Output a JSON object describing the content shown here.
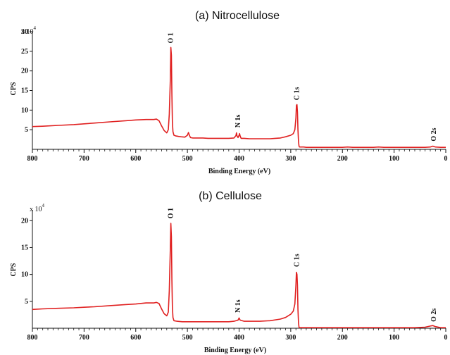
{
  "chart_data": [
    {
      "type": "line",
      "title": "(a) Nitrocellulose",
      "xlabel": "Binding Energy (eV)",
      "ylabel": "CPS",
      "y_multiplier": "x 10",
      "y_multiplier_exp": "4",
      "xlim": [
        800,
        0
      ],
      "ylim": [
        0,
        30
      ],
      "xticks": [
        800,
        700,
        600,
        500,
        400,
        300,
        200,
        100,
        0
      ],
      "yticks": [
        5,
        10,
        15,
        20,
        25,
        30
      ],
      "grid": false,
      "line_color": "#e02020",
      "series": [
        {
          "x": [
            800,
            780,
            750,
            720,
            700,
            680,
            650,
            620,
            600,
            580,
            565,
            560,
            555,
            550,
            545,
            540,
            537,
            535,
            533,
            532,
            531,
            530,
            529,
            528,
            526,
            522,
            518,
            512,
            505,
            500,
            498,
            496,
            494,
            490,
            480,
            470,
            460,
            450,
            440,
            430,
            420,
            410,
            406,
            405,
            404,
            402,
            400,
            399,
            398,
            396,
            390,
            380,
            370,
            360,
            350,
            340,
            330,
            320,
            310,
            300,
            295,
            292,
            290,
            289,
            288,
            287,
            286,
            285,
            284,
            283,
            280,
            275,
            270,
            260,
            250,
            240,
            230,
            220,
            210,
            200,
            190,
            180,
            160,
            140,
            130,
            120,
            100,
            80,
            60,
            40,
            30,
            25,
            20,
            10,
            0
          ],
          "values": [
            5.8,
            5.9,
            6.1,
            6.3,
            6.5,
            6.7,
            7.0,
            7.3,
            7.5,
            7.6,
            7.6,
            7.7,
            7.3,
            6.0,
            4.8,
            4.2,
            5.0,
            9.0,
            18.0,
            26.0,
            24.0,
            14.0,
            7.0,
            4.5,
            3.6,
            3.4,
            3.3,
            3.2,
            3.1,
            3.6,
            4.3,
            3.5,
            3.0,
            2.9,
            2.9,
            2.9,
            2.8,
            2.8,
            2.8,
            2.8,
            2.8,
            2.9,
            3.5,
            4.2,
            3.4,
            3.0,
            3.6,
            4.0,
            3.4,
            2.8,
            2.8,
            2.7,
            2.7,
            2.7,
            2.7,
            2.7,
            2.8,
            2.9,
            3.2,
            3.6,
            4.0,
            5.0,
            8.0,
            11.2,
            11.4,
            9.5,
            5.0,
            2.0,
            0.8,
            0.6,
            0.6,
            0.6,
            0.5,
            0.5,
            0.5,
            0.5,
            0.5,
            0.5,
            0.5,
            0.5,
            0.6,
            0.5,
            0.5,
            0.5,
            0.6,
            0.5,
            0.5,
            0.5,
            0.5,
            0.5,
            0.6,
            0.8,
            0.6,
            0.5,
            0.5
          ]
        }
      ],
      "annotations": [
        {
          "text": "O 1",
          "x": 532,
          "y": 26.5
        },
        {
          "text": "N 1s",
          "x": 402,
          "y": 5.0
        },
        {
          "text": "C 1s",
          "x": 288,
          "y": 12.0
        },
        {
          "text": "O 2s",
          "x": 23,
          "y": 1.5
        }
      ]
    },
    {
      "type": "line",
      "title": "(b) Cellulose",
      "xlabel": "Binding Energy (eV)",
      "ylabel": "CPS",
      "y_multiplier": "x 10",
      "y_multiplier_exp": "4",
      "xlim": [
        800,
        0
      ],
      "ylim": [
        0,
        22
      ],
      "xticks": [
        800,
        700,
        600,
        500,
        400,
        300,
        200,
        100,
        0
      ],
      "yticks": [
        5,
        10,
        15,
        20
      ],
      "grid": false,
      "line_color": "#e02020",
      "series": [
        {
          "x": [
            800,
            780,
            750,
            720,
            700,
            680,
            650,
            620,
            600,
            580,
            565,
            560,
            555,
            550,
            545,
            540,
            537,
            535,
            533,
            532,
            531,
            530,
            529,
            528,
            526,
            520,
            510,
            500,
            490,
            480,
            460,
            440,
            420,
            410,
            402,
            400,
            398,
            390,
            380,
            360,
            340,
            320,
            310,
            300,
            295,
            292,
            290,
            289,
            288,
            287,
            286,
            285,
            284,
            283,
            280,
            270,
            250,
            220,
            200,
            180,
            150,
            120,
            100,
            80,
            60,
            40,
            30,
            25,
            20,
            10,
            0
          ],
          "values": [
            3.5,
            3.6,
            3.7,
            3.8,
            3.9,
            4.0,
            4.2,
            4.4,
            4.5,
            4.7,
            4.7,
            4.8,
            4.6,
            3.6,
            2.7,
            2.3,
            3.0,
            7.0,
            15.0,
            19.5,
            17.0,
            9.0,
            4.0,
            2.0,
            1.4,
            1.3,
            1.2,
            1.2,
            1.2,
            1.2,
            1.2,
            1.2,
            1.2,
            1.3,
            1.5,
            1.9,
            1.5,
            1.3,
            1.3,
            1.3,
            1.4,
            1.7,
            2.0,
            2.6,
            3.2,
            4.5,
            8.0,
            10.4,
            10.0,
            8.0,
            3.5,
            1.0,
            0.2,
            0.1,
            0.1,
            0.1,
            0.1,
            0.1,
            0.1,
            0.1,
            0.1,
            0.1,
            0.1,
            0.1,
            0.1,
            0.2,
            0.4,
            0.5,
            0.3,
            0.1,
            0.1
          ]
        }
      ],
      "annotations": [
        {
          "text": "O 1",
          "x": 532,
          "y": 20.0
        },
        {
          "text": "N 1s",
          "x": 402,
          "y": 2.5
        },
        {
          "text": "C 1s",
          "x": 288,
          "y": 11.0
        },
        {
          "text": "O 2s",
          "x": 23,
          "y": 0.8
        }
      ]
    }
  ]
}
